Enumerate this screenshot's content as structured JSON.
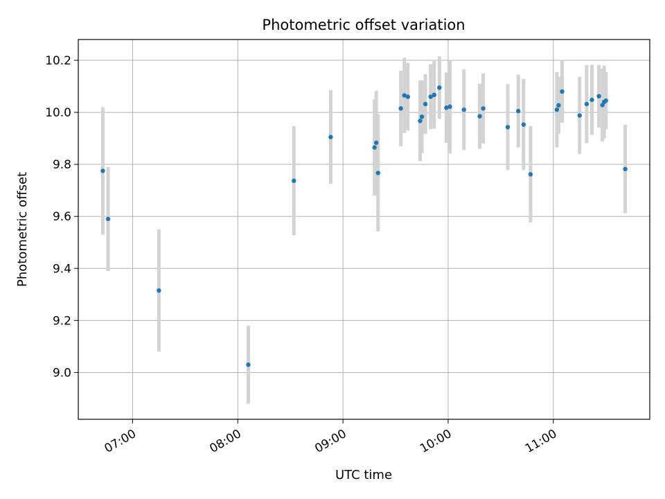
{
  "chart_data": {
    "type": "scatter",
    "title": "Photometric offset variation",
    "xlabel": "UTC time",
    "ylabel": "Photometric offset",
    "x_tick_labels": [
      "07:00",
      "08:00",
      "09:00",
      "10:00",
      "11:00"
    ],
    "y_tick_labels": [
      "9.0",
      "9.2",
      "9.4",
      "9.6",
      "9.8",
      "10.0",
      "10.2"
    ],
    "xlim": [
      "06:29",
      "11:55"
    ],
    "ylim": [
      8.82,
      10.28
    ],
    "grid": true,
    "colors": {
      "marker": "#1f77b4",
      "errorbar": "#d3d3d3",
      "grid": "#b0b0b0"
    },
    "points": [
      {
        "x": "06:43",
        "y": 9.775,
        "err": 0.245
      },
      {
        "x": "06:46",
        "y": 9.59,
        "err": 0.2
      },
      {
        "x": "07:15",
        "y": 9.315,
        "err": 0.235
      },
      {
        "x": "08:06",
        "y": 9.03,
        "err": 0.15
      },
      {
        "x": "08:32",
        "y": 9.737,
        "err": 0.21
      },
      {
        "x": "08:53",
        "y": 9.905,
        "err": 0.18
      },
      {
        "x": "09:18",
        "y": 9.865,
        "err": 0.185
      },
      {
        "x": "09:19",
        "y": 9.883,
        "err": 0.2
      },
      {
        "x": "09:20",
        "y": 9.767,
        "err": 0.225
      },
      {
        "x": "09:33",
        "y": 10.015,
        "err": 0.145
      },
      {
        "x": "09:35",
        "y": 10.065,
        "err": 0.145
      },
      {
        "x": "09:37",
        "y": 10.06,
        "err": 0.13
      },
      {
        "x": "09:44",
        "y": 9.967,
        "err": 0.155
      },
      {
        "x": "09:45",
        "y": 9.983,
        "err": 0.14
      },
      {
        "x": "09:47",
        "y": 10.032,
        "err": 0.115
      },
      {
        "x": "09:50",
        "y": 10.06,
        "err": 0.125
      },
      {
        "x": "09:52",
        "y": 10.067,
        "err": 0.13
      },
      {
        "x": "09:55",
        "y": 10.095,
        "err": 0.12
      },
      {
        "x": "09:59",
        "y": 10.018,
        "err": 0.135
      },
      {
        "x": "10:01",
        "y": 10.022,
        "err": 0.18
      },
      {
        "x": "10:09",
        "y": 10.01,
        "err": 0.155
      },
      {
        "x": "10:18",
        "y": 9.985,
        "err": 0.125
      },
      {
        "x": "10:20",
        "y": 10.015,
        "err": 0.135
      },
      {
        "x": "10:34",
        "y": 9.943,
        "err": 0.165
      },
      {
        "x": "10:40",
        "y": 10.005,
        "err": 0.14
      },
      {
        "x": "10:43",
        "y": 9.953,
        "err": 0.175
      },
      {
        "x": "10:47",
        "y": 9.762,
        "err": 0.185
      },
      {
        "x": "11:02",
        "y": 10.01,
        "err": 0.145
      },
      {
        "x": "11:03",
        "y": 10.027,
        "err": 0.11
      },
      {
        "x": "11:05",
        "y": 10.08,
        "err": 0.12
      },
      {
        "x": "11:15",
        "y": 9.988,
        "err": 0.148
      },
      {
        "x": "11:19",
        "y": 10.032,
        "err": 0.15
      },
      {
        "x": "11:22",
        "y": 10.048,
        "err": 0.135
      },
      {
        "x": "11:26",
        "y": 10.062,
        "err": 0.12
      },
      {
        "x": "11:28",
        "y": 10.028,
        "err": 0.14
      },
      {
        "x": "11:29",
        "y": 10.04,
        "err": 0.14
      },
      {
        "x": "11:30",
        "y": 10.045,
        "err": 0.11
      },
      {
        "x": "11:41",
        "y": 9.782,
        "err": 0.17
      }
    ]
  }
}
